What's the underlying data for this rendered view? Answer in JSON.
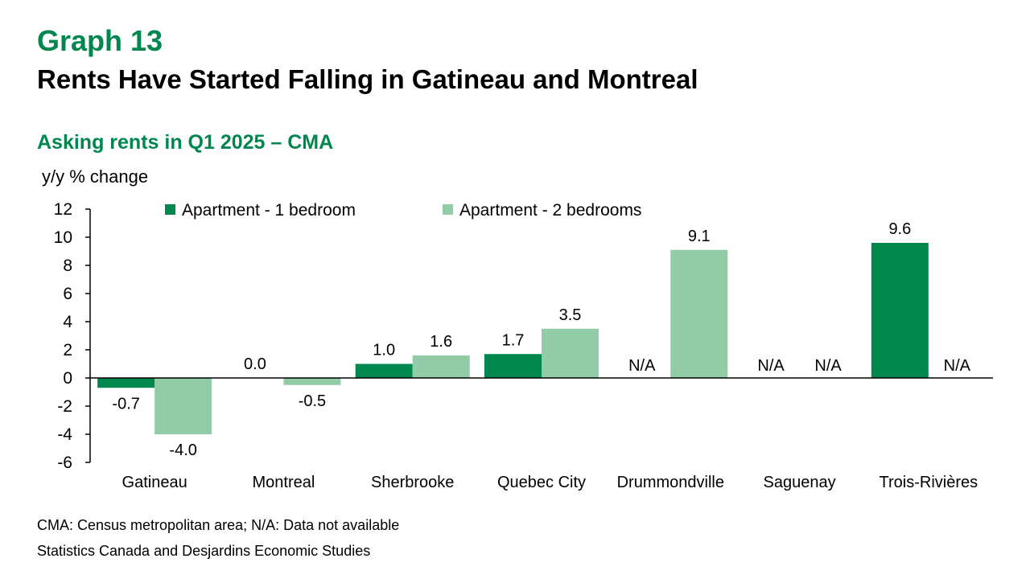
{
  "header": {
    "graph_number": "Graph 13",
    "title": "Rents Have Started Falling in Gatineau and Montreal",
    "subtitle": "Asking rents in Q1 2025 – CMA"
  },
  "footer": {
    "note": "CMA: Census metropolitan area; N/A: Data not available",
    "source": "Statistics Canada and Desjardins Economic Studies"
  },
  "chart_data": {
    "type": "bar",
    "ylabel": "y/y % change",
    "ylim": [
      -6,
      12
    ],
    "yticks": [
      12,
      10,
      8,
      6,
      4,
      2,
      0,
      -2,
      -4,
      -6
    ],
    "categories": [
      "Gatineau",
      "Montreal",
      "Sherbrooke",
      "Quebec City",
      "Drummondville",
      "Saguenay",
      "Trois-Rivières"
    ],
    "series": [
      {
        "name": "Apartment - 1 bedroom",
        "color": "#00874e",
        "values": [
          -0.7,
          0.0,
          1.0,
          1.7,
          null,
          null,
          9.6
        ],
        "labels": [
          "-0.7",
          "0.0",
          "1.0",
          "1.7",
          "N/A",
          "N/A",
          "9.6"
        ]
      },
      {
        "name": "Apartment - 2 bedrooms",
        "color": "#91cca7",
        "values": [
          -4.0,
          -0.5,
          1.6,
          3.5,
          9.1,
          null,
          null
        ],
        "labels": [
          "-4.0",
          "-0.5",
          "1.6",
          "3.5",
          "9.1",
          "N/A",
          "N/A"
        ]
      }
    ],
    "legend_position": "top",
    "grid": false
  }
}
